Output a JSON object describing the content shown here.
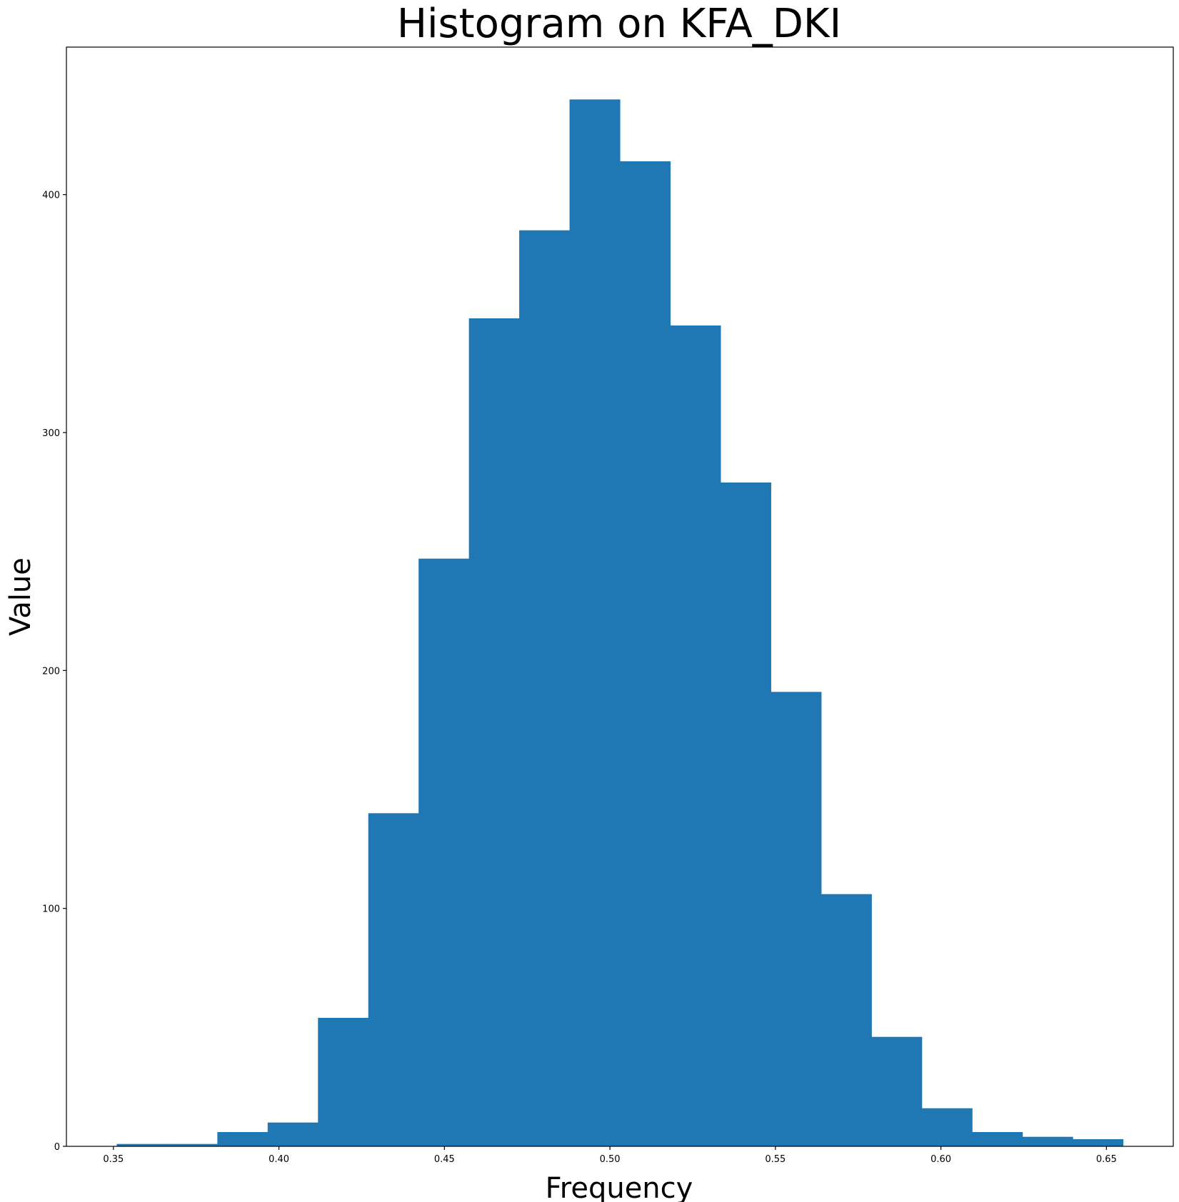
{
  "chart_data": {
    "type": "bar",
    "title": "Histogram on KFA_DKI",
    "xlabel": "Frequency",
    "ylabel": "Value",
    "bin_edges": [
      0.351,
      0.3662,
      0.3814,
      0.3966,
      0.4118,
      0.427,
      0.4422,
      0.4574,
      0.4726,
      0.4878,
      0.503,
      0.5182,
      0.5334,
      0.5486,
      0.5638,
      0.579,
      0.5942,
      0.6094,
      0.6246,
      0.6398,
      0.655
    ],
    "values": [
      1,
      1,
      6,
      10,
      54,
      140,
      247,
      348,
      385,
      440,
      414,
      345,
      279,
      191,
      106,
      46,
      16,
      6,
      4,
      3
    ],
    "xlim": [
      0.3358,
      0.6702
    ],
    "ylim": [
      0,
      462
    ],
    "xticks": [
      "0.35",
      "0.40",
      "0.45",
      "0.50",
      "0.55",
      "0.60",
      "0.65"
    ],
    "yticks": [
      "0",
      "100",
      "200",
      "300",
      "400"
    ],
    "bar_color": "#1f77b4",
    "grid": false,
    "legend": "none"
  }
}
